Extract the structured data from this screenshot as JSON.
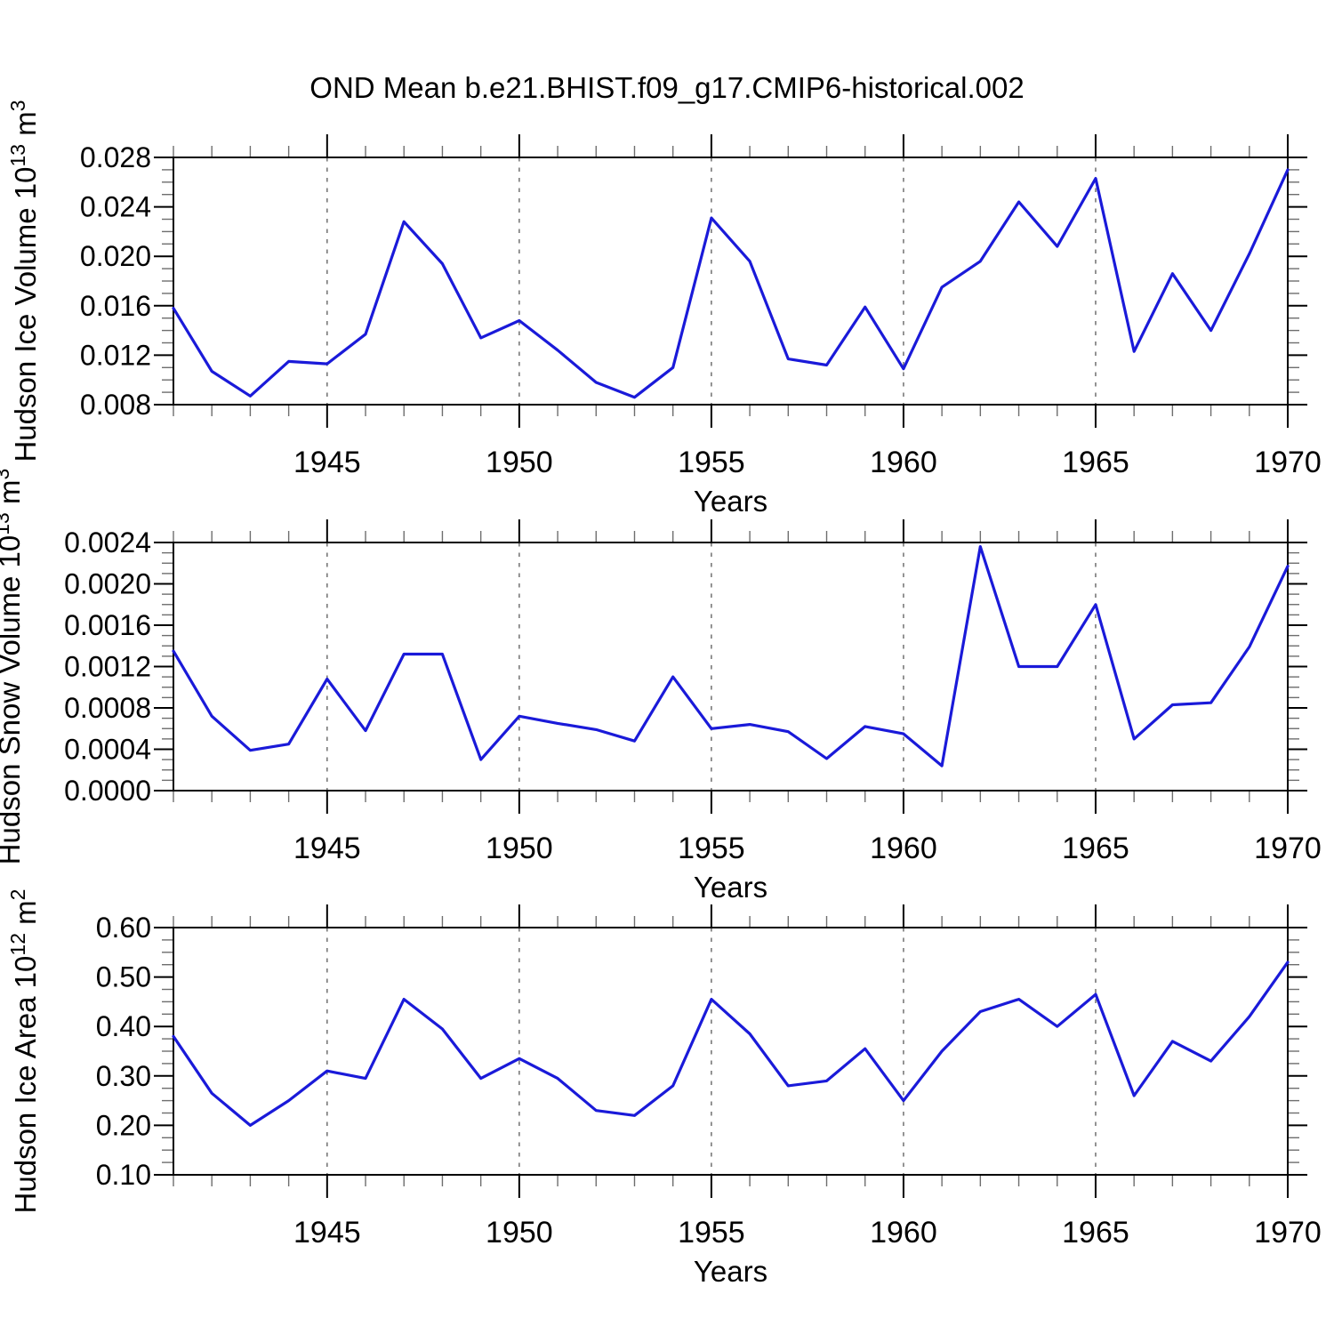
{
  "title": "OND Mean b.e21.BHIST.f09_g17.CMIP6-historical.002",
  "colors": {
    "line": "#1a1ad9",
    "frame": "#000000",
    "major_tick": "#000000",
    "minor_tick": "#6e6e6e",
    "gridline": "#707070",
    "text": "#000000",
    "background": "#ffffff"
  },
  "x_axis": {
    "label": "Years",
    "years": [
      1941,
      1942,
      1943,
      1944,
      1945,
      1946,
      1947,
      1948,
      1949,
      1950,
      1951,
      1952,
      1953,
      1954,
      1955,
      1956,
      1957,
      1958,
      1959,
      1960,
      1961,
      1962,
      1963,
      1964,
      1965,
      1966,
      1967,
      1968,
      1969,
      1970
    ],
    "major_ticks": [
      1945,
      1950,
      1955,
      1960,
      1965,
      1970
    ],
    "gridline_years": [
      1945,
      1950,
      1955,
      1960,
      1965
    ],
    "range": [
      1941,
      1970
    ]
  },
  "chart_data": [
    {
      "type": "line",
      "name": "hudson-ice-volume",
      "ylabel_text": "Hudson Ice Volume 10^13 m^3",
      "ylabel_parts": [
        {
          "t": "Hudson Ice Volume 10"
        },
        {
          "t": "13",
          "sup": true
        },
        {
          "t": " m"
        },
        {
          "t": "3",
          "sup": true
        }
      ],
      "xlabel": "Years",
      "ylim": [
        0.008,
        0.028
      ],
      "ytick_values": [
        0.008,
        0.012,
        0.016,
        0.02,
        0.024,
        0.028
      ],
      "ytick_labels": [
        "0.008",
        "0.012",
        "0.016",
        "0.020",
        "0.024",
        "0.028"
      ],
      "y_minor_step": 0.001,
      "values": [
        0.0158,
        0.0107,
        0.0087,
        0.0115,
        0.0113,
        0.0137,
        0.0228,
        0.0194,
        0.0134,
        0.0148,
        0.0124,
        0.0098,
        0.0086,
        0.011,
        0.0231,
        0.0196,
        0.0117,
        0.0112,
        0.0159,
        0.0109,
        0.0175,
        0.0196,
        0.0244,
        0.0208,
        0.0263,
        0.0123,
        0.0186,
        0.014,
        0.0202,
        0.027
      ]
    },
    {
      "type": "line",
      "name": "hudson-snow-volume",
      "ylabel_text": "Hudson Snow Volume 10^13 m^3",
      "ylabel_parts": [
        {
          "t": "Hudson Snow Volume 10"
        },
        {
          "t": "13",
          "sup": true
        },
        {
          "t": " m"
        },
        {
          "t": "3",
          "sup": true
        }
      ],
      "xlabel": "Years",
      "ylim": [
        0.0,
        0.0024
      ],
      "ytick_values": [
        0.0,
        0.0004,
        0.0008,
        0.0012,
        0.0016,
        0.002,
        0.0024
      ],
      "ytick_labels": [
        "0.0000",
        "0.0004",
        "0.0008",
        "0.0012",
        "0.0016",
        "0.0020",
        "0.0024"
      ],
      "y_minor_step": 0.0001,
      "values": [
        0.00135,
        0.00072,
        0.00039,
        0.00045,
        0.00108,
        0.00058,
        0.00132,
        0.00132,
        0.0003,
        0.00072,
        0.00065,
        0.00059,
        0.00048,
        0.0011,
        0.0006,
        0.00064,
        0.00057,
        0.00031,
        0.00062,
        0.00055,
        0.00024,
        0.00236,
        0.0012,
        0.0012,
        0.0018,
        0.0005,
        0.00083,
        0.00085,
        0.00139,
        0.00217
      ]
    },
    {
      "type": "line",
      "name": "hudson-ice-area",
      "ylabel_text": "Hudson Ice Area 10^12 m^2",
      "ylabel_parts": [
        {
          "t": "Hudson Ice Area 10"
        },
        {
          "t": "12",
          "sup": true
        },
        {
          "t": " m"
        },
        {
          "t": "2",
          "sup": true
        }
      ],
      "xlabel": "Years",
      "ylim": [
        0.1,
        0.6
      ],
      "ytick_values": [
        0.1,
        0.2,
        0.3,
        0.4,
        0.5,
        0.6
      ],
      "ytick_labels": [
        "0.10",
        "0.20",
        "0.30",
        "0.40",
        "0.50",
        "0.60"
      ],
      "y_minor_step": 0.025,
      "values": [
        0.38,
        0.265,
        0.2,
        0.25,
        0.31,
        0.295,
        0.455,
        0.395,
        0.295,
        0.335,
        0.295,
        0.23,
        0.22,
        0.28,
        0.455,
        0.385,
        0.28,
        0.29,
        0.355,
        0.25,
        0.35,
        0.43,
        0.455,
        0.4,
        0.465,
        0.26,
        0.37,
        0.33,
        0.42,
        0.53
      ]
    }
  ]
}
